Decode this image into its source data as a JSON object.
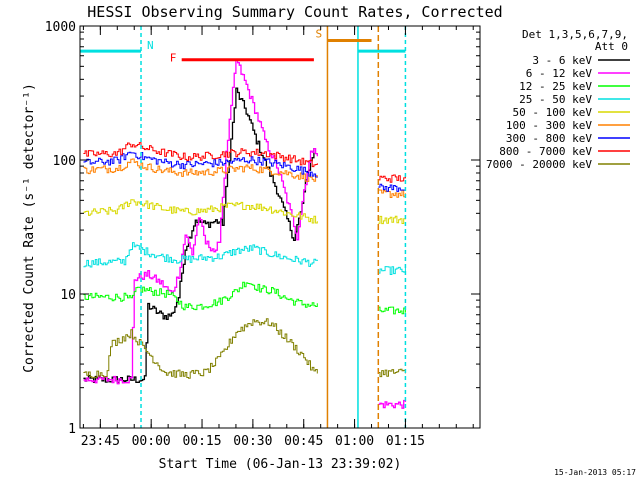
{
  "chart_data": {
    "type": "line",
    "title": "HESSI Observing Summary Count Rates, Corrected",
    "xlabel": "Start Time (06-Jan-13 23:39:02)",
    "ylabel": "Corrected Count Rate (s⁻¹ detector⁻¹)",
    "yscale": "log",
    "ylim": [
      1,
      1000
    ],
    "y_ticks": [
      "1",
      "10",
      "100",
      "1000"
    ],
    "x_range_minutes": [
      -21,
      97
    ],
    "x_ticks": [
      {
        "m": -15,
        "label": "23:45"
      },
      {
        "m": 0,
        "label": "00:00"
      },
      {
        "m": 15,
        "label": "00:15"
      },
      {
        "m": 30,
        "label": "00:30"
      },
      {
        "m": 45,
        "label": "00:45"
      },
      {
        "m": 60,
        "label": "01:00"
      },
      {
        "m": 75,
        "label": "01:15"
      }
    ],
    "legend_header": [
      "Det 1,3,5,6,7,9,",
      "Att 0"
    ],
    "legend_position": "right",
    "timestamp": "15-Jan-2013 05:17",
    "annotations": {
      "night": {
        "label": "N",
        "color": "#00e0e0",
        "level": 650,
        "segments": [
          [
            -21,
            -3
          ],
          [
            61,
            75
          ]
        ],
        "markers": [
          -3,
          61,
          75
        ]
      },
      "flare": {
        "label": "F",
        "color": "#ff0000",
        "level": 560,
        "start": 9,
        "end": 48
      },
      "saa": {
        "label": "S",
        "color": "#e08000",
        "level": 780,
        "start": 52,
        "end": 65,
        "markers": [
          52,
          67
        ]
      }
    },
    "gaps": [
      [
        49,
        67
      ]
    ],
    "series": [
      {
        "name": "3 - 6 keV",
        "color": "#000000",
        "points": [
          [
            -20,
            2.3
          ],
          [
            -2,
            2.3
          ],
          [
            -1,
            8.2
          ],
          [
            2,
            7.2
          ],
          [
            4,
            6.8
          ],
          [
            6,
            7
          ],
          [
            8,
            9.5
          ],
          [
            10,
            22
          ],
          [
            13,
            36
          ],
          [
            16,
            33
          ],
          [
            19,
            35
          ],
          [
            21,
            34
          ],
          [
            22,
            60
          ],
          [
            25,
            330
          ],
          [
            28,
            230
          ],
          [
            31,
            140
          ],
          [
            34,
            90
          ],
          [
            37,
            60
          ],
          [
            40,
            36
          ],
          [
            42,
            26
          ],
          [
            44,
            40
          ],
          [
            46,
            80
          ],
          [
            48,
            120
          ]
        ]
      },
      {
        "name": "6 - 12 keV",
        "color": "#ff00ff",
        "points": [
          [
            -20,
            2.3
          ],
          [
            -6,
            2.3
          ],
          [
            -5,
            13
          ],
          [
            -1,
            14
          ],
          [
            3,
            12
          ],
          [
            6,
            10
          ],
          [
            8,
            14
          ],
          [
            10,
            28
          ],
          [
            12,
            20
          ],
          [
            14,
            38
          ],
          [
            16,
            24
          ],
          [
            18,
            22
          ],
          [
            19,
            20
          ],
          [
            20,
            26
          ],
          [
            22,
            110
          ],
          [
            25,
            560
          ],
          [
            28,
            360
          ],
          [
            31,
            220
          ],
          [
            34,
            130
          ],
          [
            37,
            90
          ],
          [
            40,
            50
          ],
          [
            43,
            27
          ],
          [
            45,
            60
          ],
          [
            47,
            110
          ],
          [
            48,
            130
          ],
          [
            67,
            1.5
          ],
          [
            75,
            1.5
          ]
        ]
      },
      {
        "name": "12 - 25 keV",
        "color": "#00ff00",
        "points": [
          [
            -20,
            9.5
          ],
          [
            -8,
            9.5
          ],
          [
            -6,
            9
          ],
          [
            -4,
            11
          ],
          [
            0,
            10.5
          ],
          [
            5,
            10
          ],
          [
            10,
            8
          ],
          [
            15,
            8.2
          ],
          [
            20,
            8.8
          ],
          [
            25,
            10.5
          ],
          [
            28,
            12.5
          ],
          [
            32,
            11
          ],
          [
            36,
            10.5
          ],
          [
            40,
            9.2
          ],
          [
            44,
            8.5
          ],
          [
            48,
            8.2
          ],
          [
            67,
            7.5
          ],
          [
            75,
            7.5
          ]
        ]
      },
      {
        "name": "25 - 50 keV",
        "color": "#00e0e0",
        "points": [
          [
            -20,
            17
          ],
          [
            -8,
            17.5
          ],
          [
            -6,
            23
          ],
          [
            -2,
            21
          ],
          [
            3,
            19
          ],
          [
            8,
            18
          ],
          [
            14,
            18.5
          ],
          [
            20,
            19
          ],
          [
            25,
            21
          ],
          [
            30,
            22
          ],
          [
            35,
            20
          ],
          [
            40,
            18.5
          ],
          [
            45,
            17.5
          ],
          [
            48,
            17
          ],
          [
            67,
            15
          ],
          [
            75,
            15
          ]
        ]
      },
      {
        "name": "50 - 100 keV",
        "color": "#d8d800",
        "points": [
          [
            -20,
            40
          ],
          [
            -10,
            42
          ],
          [
            -6,
            50
          ],
          [
            -2,
            47
          ],
          [
            4,
            43
          ],
          [
            10,
            41
          ],
          [
            16,
            42
          ],
          [
            22,
            45
          ],
          [
            28,
            46
          ],
          [
            34,
            44
          ],
          [
            40,
            40
          ],
          [
            46,
            37
          ],
          [
            48,
            36
          ],
          [
            67,
            36
          ],
          [
            75,
            36
          ]
        ]
      },
      {
        "name": "100 - 300 keV",
        "color": "#ff8000",
        "points": [
          [
            -20,
            84
          ],
          [
            -10,
            87
          ],
          [
            -6,
            98
          ],
          [
            -2,
            90
          ],
          [
            4,
            83
          ],
          [
            10,
            80
          ],
          [
            16,
            81
          ],
          [
            22,
            84
          ],
          [
            28,
            88
          ],
          [
            34,
            84
          ],
          [
            40,
            80
          ],
          [
            46,
            74
          ],
          [
            48,
            72
          ],
          [
            67,
            56
          ],
          [
            75,
            56
          ]
        ]
      },
      {
        "name": "300 - 800 keV",
        "color": "#0000ff",
        "points": [
          [
            -20,
            95
          ],
          [
            -10,
            99
          ],
          [
            -6,
            115
          ],
          [
            -2,
            104
          ],
          [
            4,
            96
          ],
          [
            10,
            92
          ],
          [
            16,
            94
          ],
          [
            22,
            96
          ],
          [
            28,
            101
          ],
          [
            34,
            97
          ],
          [
            40,
            90
          ],
          [
            46,
            82
          ],
          [
            48,
            80
          ],
          [
            67,
            62
          ],
          [
            75,
            62
          ]
        ]
      },
      {
        "name": "800 - 7000 keV",
        "color": "#ff0000",
        "points": [
          [
            -20,
            110
          ],
          [
            -10,
            112
          ],
          [
            -6,
            133
          ],
          [
            -2,
            123
          ],
          [
            4,
            113
          ],
          [
            10,
            105
          ],
          [
            16,
            107
          ],
          [
            22,
            112
          ],
          [
            28,
            115
          ],
          [
            34,
            112
          ],
          [
            40,
            104
          ],
          [
            46,
            95
          ],
          [
            48,
            93
          ],
          [
            67,
            73
          ],
          [
            75,
            73
          ]
        ]
      },
      {
        "name": "7000 - 20000 keV",
        "color": "#808000",
        "points": [
          [
            -20,
            2.5
          ],
          [
            -13,
            2.6
          ],
          [
            -12,
            4.2
          ],
          [
            -6,
            5.1
          ],
          [
            -2,
            3.9
          ],
          [
            0,
            3.4
          ],
          [
            4,
            2.6
          ],
          [
            10,
            2.5
          ],
          [
            16,
            2.6
          ],
          [
            20,
            3.3
          ],
          [
            25,
            5.2
          ],
          [
            30,
            6.3
          ],
          [
            35,
            6.1
          ],
          [
            40,
            4.6
          ],
          [
            45,
            3.4
          ],
          [
            48,
            2.6
          ],
          [
            67,
            2.6
          ],
          [
            75,
            2.6
          ]
        ]
      }
    ]
  }
}
